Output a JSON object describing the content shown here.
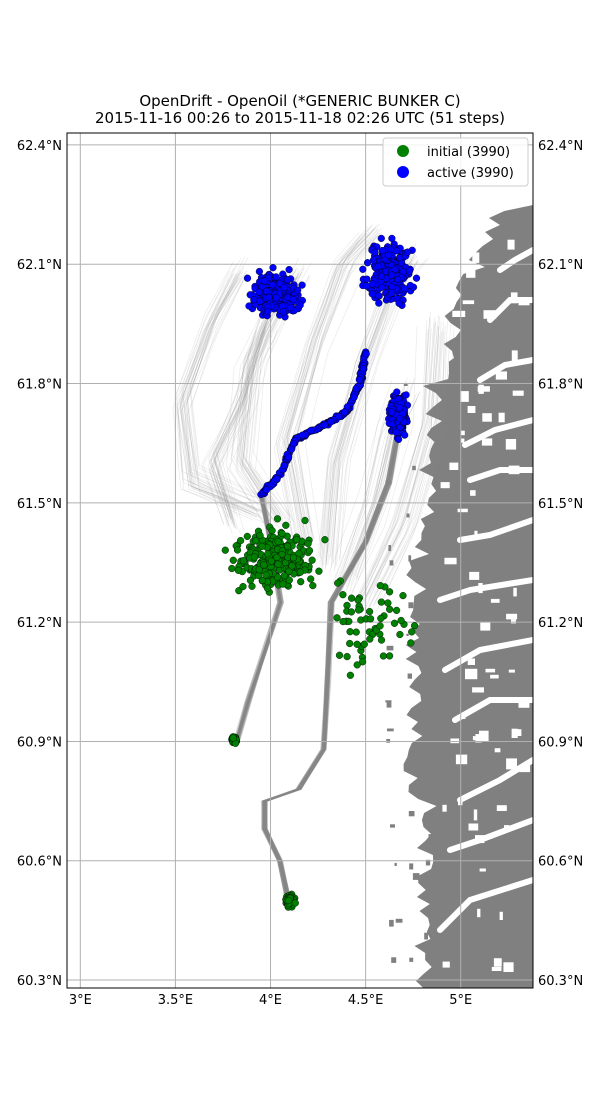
{
  "title": {
    "line1": "OpenDrift - OpenOil (*GENERIC BUNKER C)",
    "line2": "2015-11-16 00:26 to 2015-11-18 02:26 UTC (51 steps)"
  },
  "colors": {
    "initial": "#008000",
    "active": "#0000ff",
    "land": "#808080",
    "trajectory": "#888888",
    "grid": "#b0b0b0"
  },
  "axes": {
    "lon_range": [
      2.93,
      5.38
    ],
    "lat_range": [
      60.28,
      62.43
    ],
    "lon_ticks": [
      {
        "value": 3.0,
        "label": "3°E"
      },
      {
        "value": 3.5,
        "label": "3.5°E"
      },
      {
        "value": 4.0,
        "label": "4°E"
      },
      {
        "value": 4.5,
        "label": "4.5°E"
      },
      {
        "value": 5.0,
        "label": "5°E"
      }
    ],
    "lat_ticks": [
      {
        "value": 60.3,
        "label": "60.3°N"
      },
      {
        "value": 60.6,
        "label": "60.6°N"
      },
      {
        "value": 60.9,
        "label": "60.9°N"
      },
      {
        "value": 61.2,
        "label": "61.2°N"
      },
      {
        "value": 61.5,
        "label": "61.5°N"
      },
      {
        "value": 61.8,
        "label": "61.8°N"
      },
      {
        "value": 62.1,
        "label": "62.1°N"
      },
      {
        "value": 62.4,
        "label": "62.4°N"
      }
    ],
    "grid": true
  },
  "legend": {
    "position": "top-right",
    "entries": [
      {
        "key": "initial",
        "label": "initial (3990)"
      },
      {
        "key": "active",
        "label": "active (3990)"
      }
    ]
  },
  "chart_data": {
    "type": "scatter",
    "series": [
      {
        "name": "initial (3990)",
        "clusters": [
          {
            "lon": [
              3.6,
              4.45
            ],
            "lat": [
              61.2,
              61.52
            ],
            "density": "high"
          },
          {
            "lon": [
              4.2,
              4.85
            ],
            "lat": [
              61.02,
              61.38
            ],
            "density": "sparse"
          },
          {
            "lon": [
              3.78,
              3.84
            ],
            "lat": [
              60.89,
              60.92
            ],
            "density": "high"
          },
          {
            "lon": [
              4.06,
              4.15
            ],
            "lat": [
              60.47,
              60.53
            ],
            "density": "high"
          }
        ]
      },
      {
        "name": "active (3990)",
        "clusters": [
          {
            "lon": [
              3.78,
              4.28
            ],
            "lat": [
              61.92,
              62.13
            ],
            "density": "high"
          },
          {
            "lon": [
              4.4,
              4.85
            ],
            "lat": [
              61.93,
              62.23
            ],
            "density": "high"
          },
          {
            "lon": [
              4.58,
              4.76
            ],
            "lat": [
              61.62,
              61.82
            ],
            "density": "high"
          },
          {
            "path_lon": [
              3.95,
              4.05,
              4.13,
              4.3,
              4.4,
              4.47,
              4.5
            ],
            "path_lat": [
              61.52,
              61.57,
              61.66,
              61.7,
              61.73,
              61.8,
              61.88
            ],
            "density": "trail"
          }
        ]
      }
    ]
  }
}
